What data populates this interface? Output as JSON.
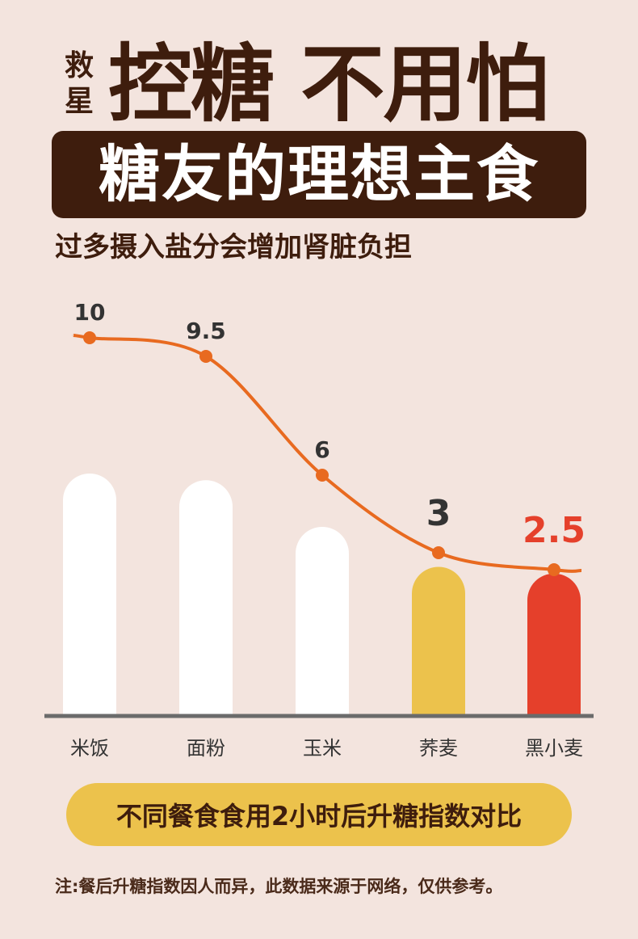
{
  "brand": "救星",
  "headline": "控糖 不用怕",
  "banner": "糖友的理想主食",
  "subtitle": "过多摄入盐分会增加肾脏负担",
  "caption": "不同餐食食用2小时后升糖指数对比",
  "footnote": "注:餐后升糖指数因人而异，此数据来源于网络，仅供参考。",
  "colors": {
    "background": "#f3e4de",
    "dark_brown": "#3e1d0d",
    "bar_default": "#ffffff",
    "bar_buckwheat": "#ecc24c",
    "bar_highlight": "#e5402b",
    "line": "#e86a20",
    "axis": "#6b6b6b"
  },
  "chart_data": {
    "type": "bar",
    "categories": [
      "米饭",
      "面粉",
      "玉米",
      "荞麦",
      "黑小麦"
    ],
    "values": [
      10,
      9.5,
      6,
      3,
      2.5
    ],
    "value_labels": [
      "10",
      "9.5",
      "6",
      "3",
      "2.5"
    ],
    "bar_colors": [
      "#ffffff",
      "#ffffff",
      "#ffffff",
      "#ecc24c",
      "#e5402b"
    ],
    "label_colors": [
      "#333333",
      "#333333",
      "#333333",
      "#333333",
      "#e5402b"
    ],
    "overlay": "smooth line connecting values",
    "grid": false,
    "ylim": [
      0,
      10
    ]
  }
}
